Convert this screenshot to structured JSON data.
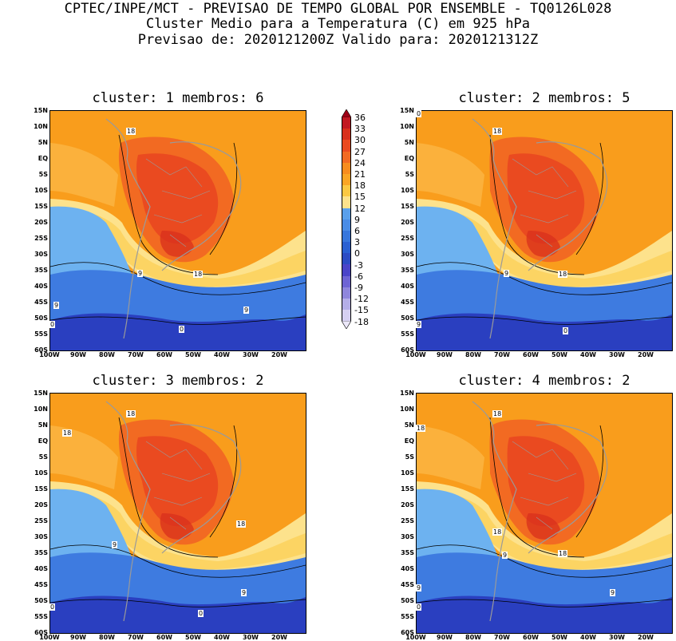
{
  "header": {
    "line1": "CPTEC/INPE/MCT - PREVISAO DE TEMPO GLOBAL POR ENSEMBLE - TQ0126L028",
    "line2": "Cluster Medio para a Temperatura (C) em 925 hPa",
    "line3": "Previsao de: 2020121200Z   Valido para: 2020121312Z"
  },
  "panels": [
    {
      "title": "cluster: 1  membros: 6",
      "contour_labels": [
        "18",
        "9",
        "18",
        "9",
        "9",
        "0",
        "0"
      ]
    },
    {
      "title": "cluster: 2  membros: 5",
      "contour_labels": [
        "18",
        "9",
        "18",
        "9",
        "0",
        "0"
      ]
    },
    {
      "title": "cluster: 3  membros: 2",
      "contour_labels": [
        "18",
        "18",
        "9",
        "18",
        "9",
        "0",
        "0"
      ]
    },
    {
      "title": "cluster: 4  membros: 2",
      "contour_labels": [
        "18",
        "18",
        "18",
        "9",
        "18",
        "9",
        "9",
        "0"
      ]
    }
  ],
  "axes": {
    "lat_labels": [
      "15N",
      "10N",
      "5N",
      "EQ",
      "5S",
      "10S",
      "15S",
      "20S",
      "25S",
      "30S",
      "35S",
      "40S",
      "45S",
      "50S",
      "55S",
      "60S"
    ],
    "lon_labels": [
      "100W",
      "90W",
      "80W",
      "70W",
      "60W",
      "50W",
      "40W",
      "30W",
      "20W"
    ]
  },
  "colorbar": {
    "ticks": [
      "36",
      "33",
      "30",
      "27",
      "24",
      "21",
      "18",
      "15",
      "12",
      "9",
      "6",
      "3",
      "0",
      "-3",
      "-6",
      "-9",
      "-12",
      "-15",
      "-18"
    ],
    "colors": [
      "#9e0016",
      "#c21822",
      "#d8301c",
      "#ea4a20",
      "#f26a22",
      "#f88c1e",
      "#fba524",
      "#fcc842",
      "#fde28c",
      "#5aa0ec",
      "#4a8ce6",
      "#3776dc",
      "#2a60d2",
      "#2c4cc4",
      "#4a44c8",
      "#6e64d4",
      "#8f86dc",
      "#b4aee8",
      "#d6d0f2",
      "#ece8fa"
    ]
  },
  "legend_colors": {
    "deep_blue": "#2a3fc0",
    "blue": "#3e7be0",
    "light_blue": "#6db2f0",
    "pale_yellow": "#fde28c",
    "yellow": "#fcc842",
    "light_orange": "#fbb13c",
    "orange": "#f99d1c",
    "dark_orange": "#f26a22",
    "red_orange": "#ea4a20",
    "red": "#d8301c",
    "land_outline": "#9a9a9a"
  }
}
